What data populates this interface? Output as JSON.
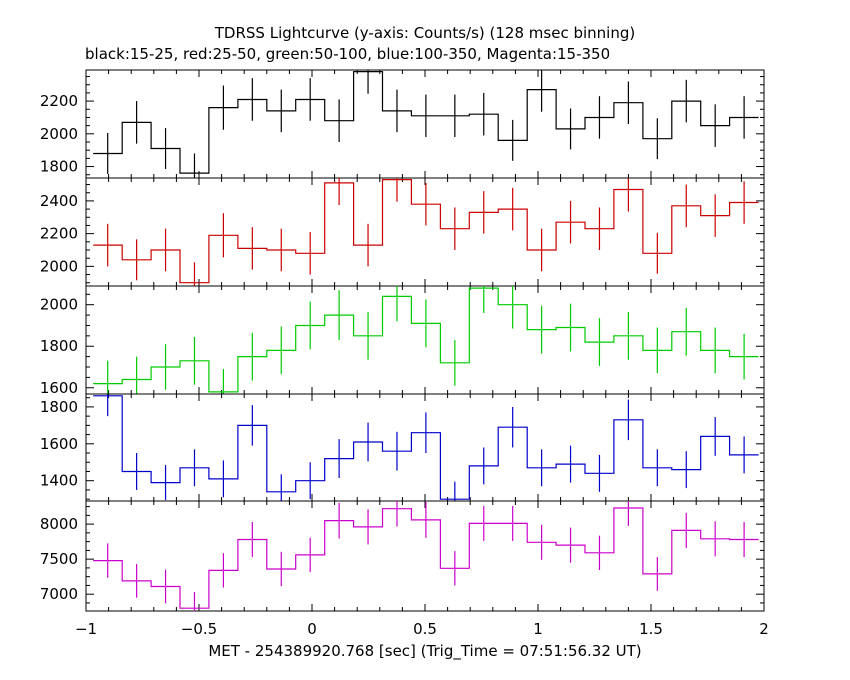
{
  "chart_data": {
    "type": "line",
    "title": "TDRSS Lightcurve (y-axis: Counts/s) (128 msec binning)",
    "subtitle": "black:15-25, red:25-50, green:50-100, blue:100-350, Magenta:15-350",
    "xlabel": "MET - 254389920.768 [sec] (Trig_Time = 07:51:56.32 UT)",
    "xlim": [
      -1,
      2
    ],
    "x_ticks": [
      -1,
      -0.5,
      0,
      0.5,
      1,
      1.5,
      2
    ],
    "x_tick_labels": [
      "−1",
      "−0.5",
      "0",
      "0.5",
      "1",
      "1.5",
      "2"
    ],
    "bin_width": 0.128,
    "x": [
      -0.904,
      -0.776,
      -0.648,
      -0.52,
      -0.392,
      -0.264,
      -0.136,
      -0.008,
      0.12,
      0.248,
      0.376,
      0.504,
      0.632,
      0.76,
      0.888,
      1.016,
      1.144,
      1.272,
      1.4,
      1.528,
      1.656,
      1.784,
      1.912
    ],
    "panels": [
      {
        "name": "black:15-25",
        "color": "#000000",
        "ylim": [
          1730,
          2390
        ],
        "y_ticks": [
          1800,
          2000,
          2200
        ],
        "values": [
          1880,
          2070,
          1910,
          1760,
          2160,
          2210,
          2140,
          2210,
          2080,
          2380,
          2140,
          2110,
          2110,
          2120,
          1960,
          2270,
          2030,
          2100,
          2190,
          1970,
          2200,
          2050,
          2100
        ],
        "errors": [
          125,
          130,
          125,
          120,
          135,
          130,
          130,
          130,
          130,
          135,
          130,
          130,
          130,
          130,
          125,
          135,
          125,
          130,
          130,
          125,
          130,
          130,
          130
        ]
      },
      {
        "name": "red:25-50",
        "color": "#cc0000",
        "ylim": [
          1880,
          2540
        ],
        "y_ticks": [
          2000,
          2200,
          2400
        ],
        "values": [
          2130,
          2040,
          2100,
          1900,
          2190,
          2110,
          2100,
          2080,
          2510,
          2130,
          2530,
          2380,
          2230,
          2330,
          2350,
          2100,
          2270,
          2230,
          2470,
          2080,
          2370,
          2310,
          2390
        ],
        "errors": [
          130,
          125,
          130,
          125,
          135,
          130,
          130,
          130,
          135,
          130,
          135,
          130,
          130,
          130,
          130,
          130,
          130,
          130,
          135,
          125,
          130,
          130,
          130
        ]
      },
      {
        "name": "green:50-100",
        "color": "#00cc00",
        "ylim": [
          1570,
          2090
        ],
        "y_ticks": [
          1600,
          1800,
          2000
        ],
        "values": [
          1620,
          1640,
          1700,
          1730,
          1580,
          1750,
          1780,
          1900,
          1950,
          1850,
          2040,
          1910,
          1720,
          2080,
          2000,
          1880,
          1890,
          1820,
          1850,
          1780,
          1870,
          1780,
          1750
        ],
        "errors": [
          110,
          110,
          110,
          115,
          110,
          115,
          115,
          115,
          120,
          115,
          120,
          115,
          110,
          120,
          115,
          115,
          115,
          115,
          115,
          110,
          115,
          110,
          110
        ]
      },
      {
        "name": "blue:100-350",
        "color": "#0000cc",
        "ylim": [
          1290,
          1870
        ],
        "y_ticks": [
          1400,
          1600,
          1800
        ],
        "values": [
          1860,
          1450,
          1390,
          1470,
          1410,
          1700,
          1340,
          1400,
          1520,
          1610,
          1560,
          1660,
          1300,
          1480,
          1690,
          1470,
          1490,
          1440,
          1730,
          1470,
          1460,
          1640,
          1540
        ],
        "errors": [
          110,
          100,
          95,
          100,
          100,
          110,
          95,
          100,
          105,
          105,
          105,
          110,
          95,
          100,
          110,
          100,
          100,
          100,
          110,
          100,
          100,
          105,
          100
        ]
      },
      {
        "name": "Magenta:15-350",
        "color": "#cc00cc",
        "ylim": [
          6760,
          8330
        ],
        "y_ticks": [
          7000,
          7500,
          8000
        ],
        "values": [
          7480,
          7190,
          7110,
          6800,
          7340,
          7780,
          7360,
          7560,
          8050,
          7960,
          8220,
          8060,
          7370,
          8010,
          8010,
          7740,
          7700,
          7590,
          8230,
          7290,
          7910,
          7790,
          7780
        ],
        "errors": [
          245,
          240,
          240,
          230,
          245,
          250,
          245,
          245,
          255,
          250,
          255,
          255,
          245,
          250,
          250,
          250,
          250,
          245,
          255,
          240,
          250,
          250,
          250
        ]
      }
    ]
  }
}
